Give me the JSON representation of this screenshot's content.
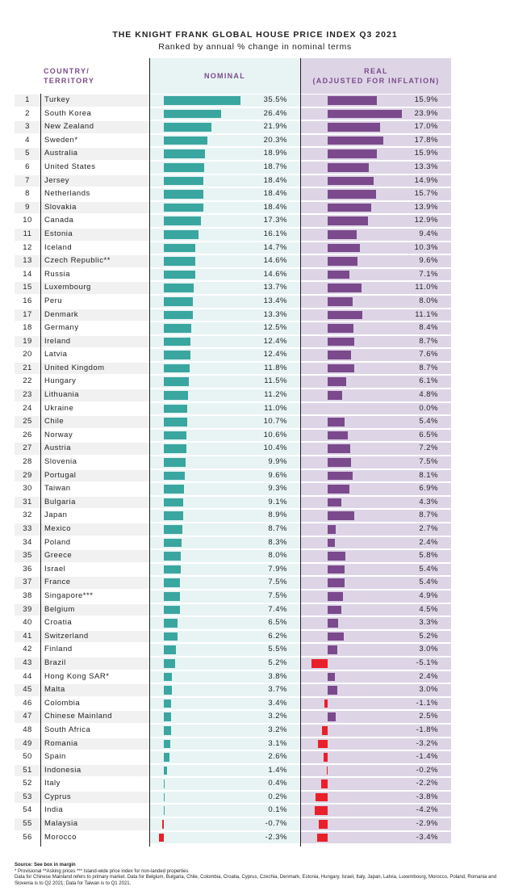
{
  "chart_data": {
    "type": "table",
    "title": "THE KNIGHT FRANK GLOBAL HOUSE PRICE INDEX Q3 2021",
    "subtitle": "Ranked by annual % change in nominal terms",
    "headers": {
      "country_line1": "COUNTRY/",
      "country_line2": "TERRITORY",
      "nominal": "NOMINAL",
      "real_line1": "REAL",
      "real_line2": "(ADJUSTED FOR INFLATION)"
    },
    "colors": {
      "nominal": "#3aa6a0",
      "real": "#7b4a8c",
      "negative": "#e8202a",
      "header": "#7b4a8c"
    },
    "rows": [
      [
        "Turkey",
        35.5,
        15.9
      ],
      [
        "South Korea",
        26.4,
        23.9
      ],
      [
        "New Zealand",
        21.9,
        17.0
      ],
      [
        "Sweden*",
        20.3,
        17.8
      ],
      [
        "Australia",
        18.9,
        15.9
      ],
      [
        "United States",
        18.7,
        13.3
      ],
      [
        "Jersey",
        18.4,
        14.9
      ],
      [
        "Netherlands",
        18.4,
        15.7
      ],
      [
        "Slovakia",
        18.4,
        13.9
      ],
      [
        "Canada",
        17.3,
        12.9
      ],
      [
        "Estonia",
        16.1,
        9.4
      ],
      [
        "Iceland",
        14.7,
        10.3
      ],
      [
        "Czech Republic**",
        14.6,
        9.6
      ],
      [
        "Russia",
        14.6,
        7.1
      ],
      [
        "Luxembourg",
        13.7,
        11.0
      ],
      [
        "Peru",
        13.4,
        8.0
      ],
      [
        "Denmark",
        13.3,
        11.1
      ],
      [
        "Germany",
        12.5,
        8.4
      ],
      [
        "Ireland",
        12.4,
        8.7
      ],
      [
        "Latvia",
        12.4,
        7.6
      ],
      [
        "United Kingdom",
        11.8,
        8.7
      ],
      [
        "Hungary",
        11.5,
        6.1
      ],
      [
        "Lithuania",
        11.2,
        4.8
      ],
      [
        "Ukraine",
        11.0,
        0.0
      ],
      [
        "Chile",
        10.7,
        5.4
      ],
      [
        "Norway",
        10.6,
        6.5
      ],
      [
        "Austria",
        10.4,
        7.2
      ],
      [
        "Slovenia",
        9.9,
        7.5
      ],
      [
        "Portugal",
        9.6,
        8.1
      ],
      [
        "Taiwan",
        9.3,
        6.9
      ],
      [
        "Bulgaria",
        9.1,
        4.3
      ],
      [
        "Japan",
        8.9,
        8.7
      ],
      [
        "Mexico",
        8.7,
        2.7
      ],
      [
        "Poland",
        8.3,
        2.4
      ],
      [
        "Greece",
        8.0,
        5.8
      ],
      [
        "Israel",
        7.9,
        5.4
      ],
      [
        "France",
        7.5,
        5.4
      ],
      [
        "Singapore***",
        7.5,
        4.9
      ],
      [
        "Belgium",
        7.4,
        4.5
      ],
      [
        "Croatia",
        6.5,
        3.3
      ],
      [
        "Switzerland",
        6.2,
        5.2
      ],
      [
        "Finland",
        5.5,
        3.0
      ],
      [
        "Brazil",
        5.2,
        -5.1
      ],
      [
        "Hong Kong SAR*",
        3.8,
        2.4
      ],
      [
        "Malta",
        3.7,
        3.0
      ],
      [
        "Colombia",
        3.4,
        -1.1
      ],
      [
        "Chinese Mainland",
        3.2,
        2.5
      ],
      [
        "South Africa",
        3.2,
        -1.8
      ],
      [
        "Romania",
        3.1,
        -3.2
      ],
      [
        "Spain",
        2.6,
        -1.4
      ],
      [
        "Indonesia",
        1.4,
        -0.2
      ],
      [
        "Italy",
        0.4,
        -2.2
      ],
      [
        "Cyprus",
        0.2,
        -3.8
      ],
      [
        "India",
        0.1,
        -4.2
      ],
      [
        "Malaysia",
        -0.7,
        -2.9
      ],
      [
        "Morocco",
        -2.3,
        -3.4
      ]
    ]
  },
  "footnotes": {
    "source": "Source: See box in margin",
    "notes": "* Provisional **Asking prices *** Island-wide price index for non-landed properties",
    "data_note": "Data for Chinese Mainland refers to primary market. Data for Belgium, Bulgaria, Chile, Colombia, Croatia, Cyprus, Czechia, Denmark, Estonia, Hungary, Israel, Italy, Japan, Latvia, Luxembourg, Morocco, Poland, Romania and Slovenia is to Q2 2021; Data for Taiwan is to Q1 2021."
  }
}
